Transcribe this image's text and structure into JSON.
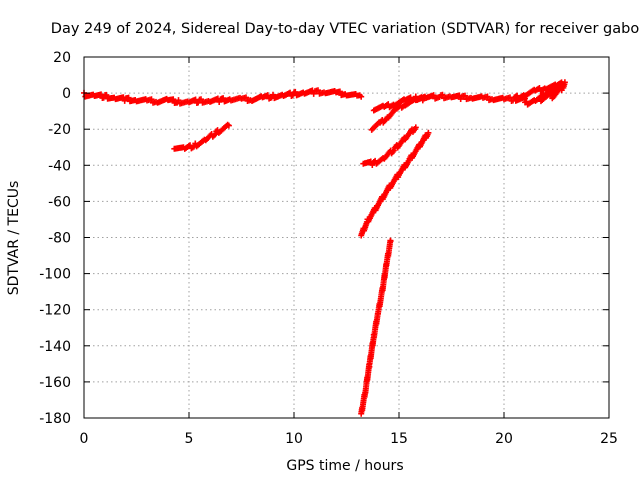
{
  "chart_data": {
    "type": "scatter",
    "title": "Day 249 of 2024, Sidereal Day-to-day VTEC variation (SDTVAR) for receiver gabo",
    "xlabel": "GPS time / hours",
    "ylabel": "SDTVAR / TECUs",
    "xlim": [
      0,
      25
    ],
    "ylim": [
      -180,
      20
    ],
    "xticks": [
      0,
      5,
      10,
      15,
      20,
      25
    ],
    "yticks": [
      20,
      0,
      -20,
      -40,
      -60,
      -80,
      -100,
      -120,
      -140,
      -160,
      -180
    ],
    "grid": true,
    "legend": "none",
    "marker": "+",
    "color": "#ff0000",
    "series": [
      {
        "x": [
          0,
          0.5,
          1,
          1.5,
          2,
          2.5,
          3,
          3.5,
          4,
          4.5,
          5,
          5.5,
          6,
          6.5,
          7,
          7.5,
          8,
          8.5,
          9,
          9.5,
          10,
          10.5,
          11,
          11.5,
          12,
          12.5,
          13,
          13.2
        ],
        "y": [
          -1,
          -1.5,
          -2,
          -3,
          -3.5,
          -4,
          -4.5,
          -4.5,
          -4,
          -5,
          -5,
          -4.5,
          -4.5,
          -4,
          -3.5,
          -3.5,
          -3.5,
          -2.5,
          -2,
          -1.5,
          -0.5,
          0,
          0.5,
          0.5,
          0,
          -0.5,
          -1.5,
          -2
        ]
      },
      {
        "x": [
          4.3,
          4.8,
          5.3,
          5.8,
          6.3,
          6.9
        ],
        "y": [
          -30,
          -31,
          -29,
          -26,
          -22,
          -18
        ]
      },
      {
        "x": [
          13.8,
          14.3,
          14.8,
          15.3,
          15.8,
          16.3,
          17,
          17.5,
          18,
          18.5,
          19,
          19.5,
          20,
          20.5,
          21
        ],
        "y": [
          -9,
          -8,
          -6,
          -4,
          -3,
          -2.5,
          -2,
          -2,
          -2.5,
          -2.5,
          -3,
          -3,
          -3.5,
          -3.5,
          -3
        ]
      },
      {
        "x": [
          13.7,
          14.1,
          14.5,
          14.9,
          15.3,
          15.8,
          16.2
        ],
        "y": [
          -20,
          -17,
          -13,
          -9,
          -6,
          -4,
          -3
        ]
      },
      {
        "x": [
          13.3,
          13.8,
          14.3,
          14.8,
          15.3,
          15.8
        ],
        "y": [
          -39,
          -39,
          -36,
          -31,
          -25,
          -19
        ]
      },
      {
        "x": [
          13.2,
          13.5,
          14,
          14.5,
          15,
          15.5,
          16,
          16.4
        ],
        "y": [
          -79,
          -71,
          -62,
          -53,
          -45,
          -37,
          -29,
          -22
        ]
      },
      {
        "x": [
          13.2,
          13.4,
          13.6,
          13.8,
          14,
          14.2,
          14.4,
          14.6
        ],
        "y": [
          -178,
          -165,
          -150,
          -135,
          -122,
          -110,
          -95,
          -82
        ]
      },
      {
        "x": [
          20.5,
          21,
          21.5,
          22,
          22.5,
          22.8
        ],
        "y": [
          -3,
          -1,
          1,
          3,
          4,
          5
        ]
      },
      {
        "x": [
          21,
          21.5,
          22,
          22.5,
          22.8
        ],
        "y": [
          -6,
          -4,
          -1,
          2,
          4
        ]
      },
      {
        "x": [
          21.7,
          22,
          22.4,
          22.8
        ],
        "y": [
          -4,
          -2,
          1,
          5
        ]
      },
      {
        "x": [
          22.3,
          22.5,
          22.8,
          22.9
        ],
        "y": [
          -2,
          0,
          3,
          6
        ]
      }
    ]
  }
}
